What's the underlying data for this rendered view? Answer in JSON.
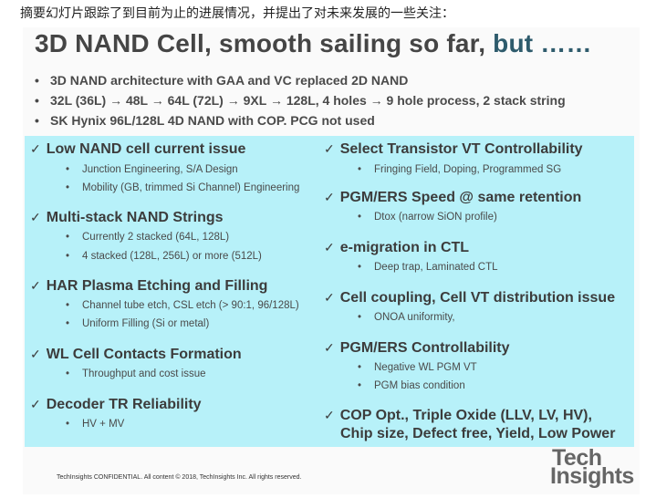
{
  "caption": "摘要幻灯片跟踪了到目前为止的进展情况，并提出了对未来发展的一些关注：",
  "slide": {
    "title_main": "3D NAND Cell, smooth sailing so far, ",
    "title_accent": "but ……",
    "intro_bullets": [
      "3D NAND architecture with GAA and VC replaced 2D NAND",
      "32L (36L) → 48L → 64L (72L) → 9XL → 128L, 4 holes → 9 hole process, 2 stack string",
      "SK Hynix 96L/128L 4D NAND with COP. PCG not used"
    ],
    "check_glyph": "✓",
    "left": [
      {
        "heading": "Low NAND cell current issue",
        "subs": [
          "Junction Engineering, S/A Design",
          "Mobility (GB, trimmed Si Channel) Engineering"
        ]
      },
      {
        "heading": "Multi-stack NAND Strings",
        "subs": [
          "Currently 2 stacked (64L, 128L)",
          "4 stacked (128L, 256L) or more (512L)"
        ]
      },
      {
        "heading": "HAR Plasma Etching and Filling",
        "subs": [
          "Channel tube etch, CSL etch (> 90:1, 96/128L)",
          "Uniform Filling (Si or metal)"
        ]
      },
      {
        "heading": "WL Cell Contacts Formation",
        "subs": [
          "Throughput and cost issue"
        ]
      },
      {
        "heading": "Decoder TR Reliability",
        "subs": [
          "HV + MV"
        ]
      }
    ],
    "right": [
      {
        "heading": "Select Transistor VT Controllability",
        "subs": [
          "Fringing Field, Doping, Programmed SG"
        ]
      },
      {
        "heading": "PGM/ERS Speed @ same retention",
        "subs": [
          "Dtox (narrow SiON profile)"
        ]
      },
      {
        "heading": "e-migration in CTL",
        "subs": [
          "Deep trap, Laminated CTL"
        ]
      },
      {
        "heading": "Cell coupling, Cell VT distribution issue",
        "subs": [
          "ONOA uniformity,"
        ]
      },
      {
        "heading": "PGM/ERS Controllability",
        "subs": [
          "Negative WL PGM VT",
          "PGM bias condition"
        ]
      },
      {
        "heading": "COP Opt., Triple Oxide (LLV, LV, HV),",
        "heading2": "Chip size, Defect free, Yield, Low Power",
        "subs": []
      }
    ],
    "footer": "TechInsights CONFIDENTIAL.  All content © 2018, TechInsights Inc. All rights reserved.",
    "logo": {
      "line1": "Tech",
      "line2": "Insights"
    },
    "colors": {
      "box": "#b7f1f9",
      "title": "#454545",
      "accent": "#2e5b6c"
    }
  }
}
